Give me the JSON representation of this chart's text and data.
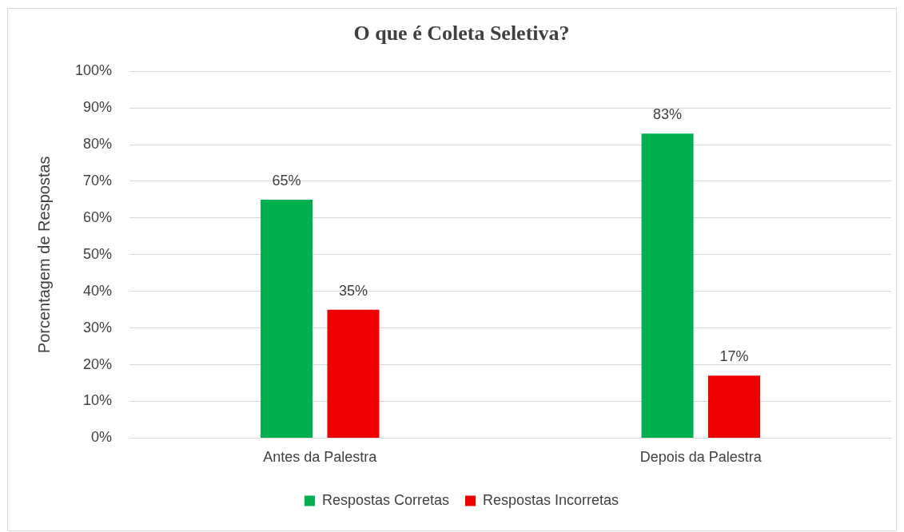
{
  "chart_data": {
    "type": "bar",
    "title": "O que é Coleta Seletiva?",
    "ylabel": "Porcentagem de Respostas",
    "categories": [
      "Antes da Palestra",
      "Depois da Palestra"
    ],
    "series": [
      {
        "name": "Respostas Corretas",
        "color": "#00b050",
        "values": [
          65,
          83
        ],
        "value_labels": [
          "65%",
          "83%"
        ]
      },
      {
        "name": "Respostas Incorretas",
        "color": "#ee0000",
        "values": [
          35,
          17
        ],
        "value_labels": [
          "35%",
          "17%"
        ]
      }
    ],
    "ylim": [
      0,
      100
    ],
    "yticks": [
      {
        "value": 0,
        "label": "0%"
      },
      {
        "value": 10,
        "label": "10%"
      },
      {
        "value": 20,
        "label": "20%"
      },
      {
        "value": 30,
        "label": "30%"
      },
      {
        "value": 40,
        "label": "40%"
      },
      {
        "value": 50,
        "label": "50%"
      },
      {
        "value": 60,
        "label": "60%"
      },
      {
        "value": 70,
        "label": "70%"
      },
      {
        "value": 80,
        "label": "80%"
      },
      {
        "value": 90,
        "label": "90%"
      },
      {
        "value": 100,
        "label": "100%"
      }
    ],
    "grid": "y",
    "legend": "bottom"
  }
}
